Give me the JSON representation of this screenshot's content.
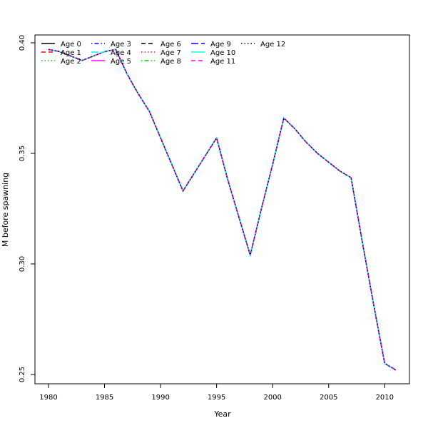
{
  "chart_data": {
    "type": "line",
    "xlabel": "Year",
    "ylabel": "M before spawning",
    "xlim": [
      1980,
      2011
    ],
    "ylim": [
      0.25,
      0.4
    ],
    "xticks": [
      1980,
      1985,
      1990,
      1995,
      2000,
      2005,
      2010
    ],
    "yticks": [
      0.25,
      0.3,
      0.35,
      0.4
    ],
    "ytick_labels": [
      "0.25",
      "0.30",
      "0.35",
      "0.40"
    ],
    "legend_position": "top-left",
    "x": [
      1980,
      1981,
      1982,
      1983,
      1984,
      1985,
      1986,
      1987,
      1988,
      1989,
      1990,
      1991,
      1992,
      1993,
      1994,
      1995,
      1996,
      1997,
      1998,
      1999,
      2000,
      2001,
      2002,
      2003,
      2004,
      2005,
      2006,
      2007,
      2008,
      2009,
      2010,
      2011
    ],
    "values": [
      0.397,
      0.396,
      0.394,
      0.392,
      0.394,
      0.396,
      0.397,
      0.386,
      0.377,
      0.369,
      0.357,
      0.345,
      0.333,
      0.341,
      0.349,
      0.357,
      0.338,
      0.321,
      0.304,
      0.325,
      0.345,
      0.366,
      0.361,
      0.355,
      0.35,
      0.346,
      0.342,
      0.339,
      0.31,
      0.282,
      0.255,
      0.252
    ],
    "note_series": "All 13 series share identical values",
    "series": [
      {
        "name": "Age 0",
        "color": "#000000",
        "dash": "solid"
      },
      {
        "name": "Age 1",
        "color": "#ff0000",
        "dash": "dashed"
      },
      {
        "name": "Age 2",
        "color": "#00cd00",
        "dash": "dotted"
      },
      {
        "name": "Age 3",
        "color": "#0000ff",
        "dash": "dotdash"
      },
      {
        "name": "Age 4",
        "color": "#00ffff",
        "dash": "longdash"
      },
      {
        "name": "Age 5",
        "color": "#ff00ff",
        "dash": "solid"
      },
      {
        "name": "Age 6",
        "color": "#000000",
        "dash": "dashed"
      },
      {
        "name": "Age 7",
        "color": "#ff0000",
        "dash": "dotted"
      },
      {
        "name": "Age 8",
        "color": "#00cd00",
        "dash": "dotdash"
      },
      {
        "name": "Age 9",
        "color": "#0000ff",
        "dash": "longdash"
      },
      {
        "name": "Age 10",
        "color": "#00ffff",
        "dash": "solid"
      },
      {
        "name": "Age 11",
        "color": "#ff00ff",
        "dash": "dashed"
      },
      {
        "name": "Age 12",
        "color": "#000000",
        "dash": "dotted"
      }
    ]
  }
}
